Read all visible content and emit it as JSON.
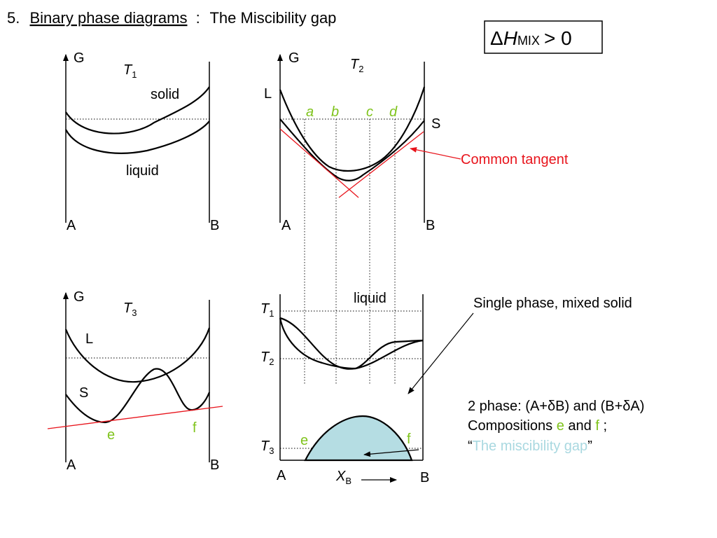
{
  "title": {
    "number": "5.",
    "underlined": "Binary phase diagrams",
    "separator": ":",
    "rest": "The Miscibility gap"
  },
  "condition_box": {
    "delta": "Δ",
    "h": "H",
    "sub": "MIX",
    "rel": "> 0"
  },
  "panel1": {
    "axis": "G",
    "temp": "T",
    "temp_sub": "1",
    "solid": "solid",
    "liquid": "liquid",
    "left": "A",
    "right": "B"
  },
  "panel2": {
    "axis": "G",
    "temp": "T",
    "temp_sub": "2",
    "L": "L",
    "S": "S",
    "a": "a",
    "b": "b",
    "c": "c",
    "d": "d",
    "left": "A",
    "right": "B",
    "tangent_label": "Common tangent"
  },
  "panel3": {
    "axis": "G",
    "temp": "T",
    "temp_sub": "3",
    "L": "L",
    "S": "S",
    "e": "e",
    "f": "f",
    "left": "A",
    "right": "B"
  },
  "phase_diagram": {
    "liquid": "liquid",
    "t1": "T",
    "t1_sub": "1",
    "t2": "T",
    "t2_sub": "2",
    "t3": "T",
    "t3_sub": "3",
    "e": "e",
    "f": "f",
    "left": "A",
    "right": "B",
    "xb": "X",
    "xb_sub": "B"
  },
  "annotations": {
    "single_phase": "Single phase, mixed solid",
    "two_phase_line1": "2 phase: (A+δB) and (B+δA)",
    "compositions_prefix": "Compositions ",
    "compositions_e": "e",
    "compositions_and": " and ",
    "compositions_f": "f",
    "compositions_suffix": " ;",
    "quote_open": "“",
    "gap_text": "The miscibility gap",
    "quote_close": "”"
  },
  "colors": {
    "green": "#7fc31c",
    "red": "#e8141c",
    "gap_fill": "#b5dde3",
    "gap_text": "#a9d8e0"
  }
}
